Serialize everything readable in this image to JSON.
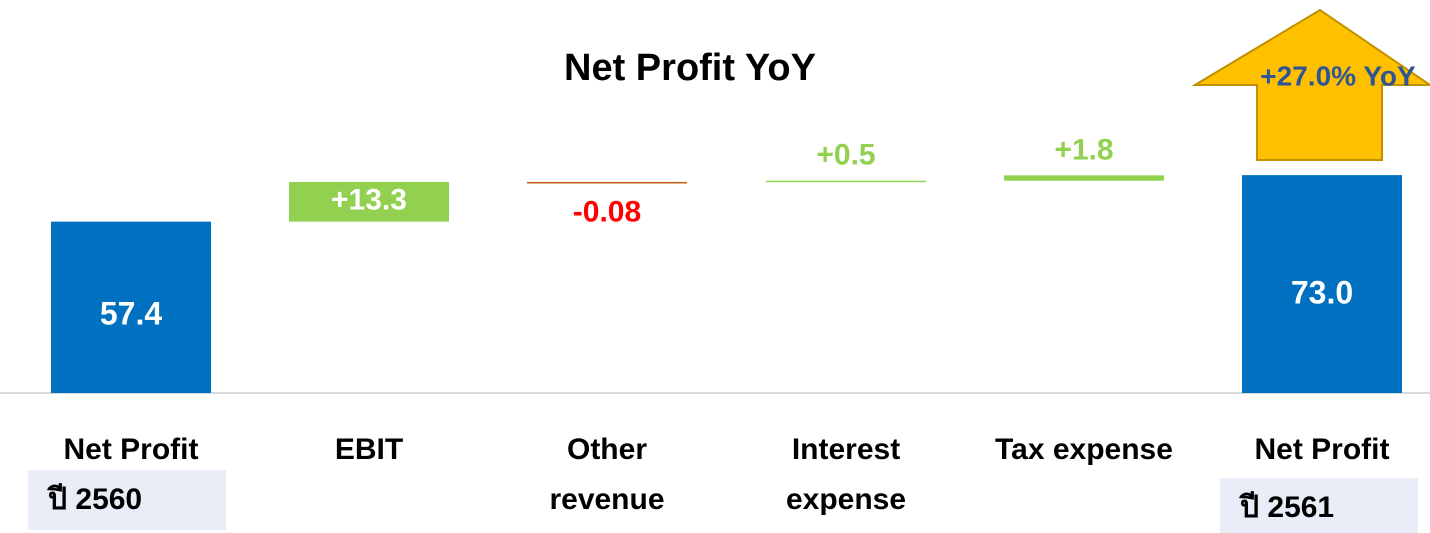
{
  "chart_data": {
    "type": "waterfall",
    "title": "Net Profit YoY",
    "categories": [
      "Net Profit",
      "EBIT",
      "Other revenue",
      "Interest expense",
      "Tax expense",
      "Net Profit"
    ],
    "sublabels": [
      "ปี 2560",
      null,
      null,
      null,
      null,
      "ปี 2561"
    ],
    "values": [
      57.4,
      13.3,
      -0.08,
      0.5,
      1.8,
      73.0
    ],
    "value_labels": [
      "57.4",
      "+13.3",
      "-0.08",
      "+0.5",
      "+1.8",
      "73.0"
    ],
    "totals": [
      true,
      false,
      false,
      false,
      false,
      true
    ],
    "colors": {
      "total": "#0070c0",
      "increase": "#92d050",
      "decrease": "#c55a11",
      "decrease_label": "#ff0000"
    },
    "annotation": "+27.0% YoY"
  }
}
